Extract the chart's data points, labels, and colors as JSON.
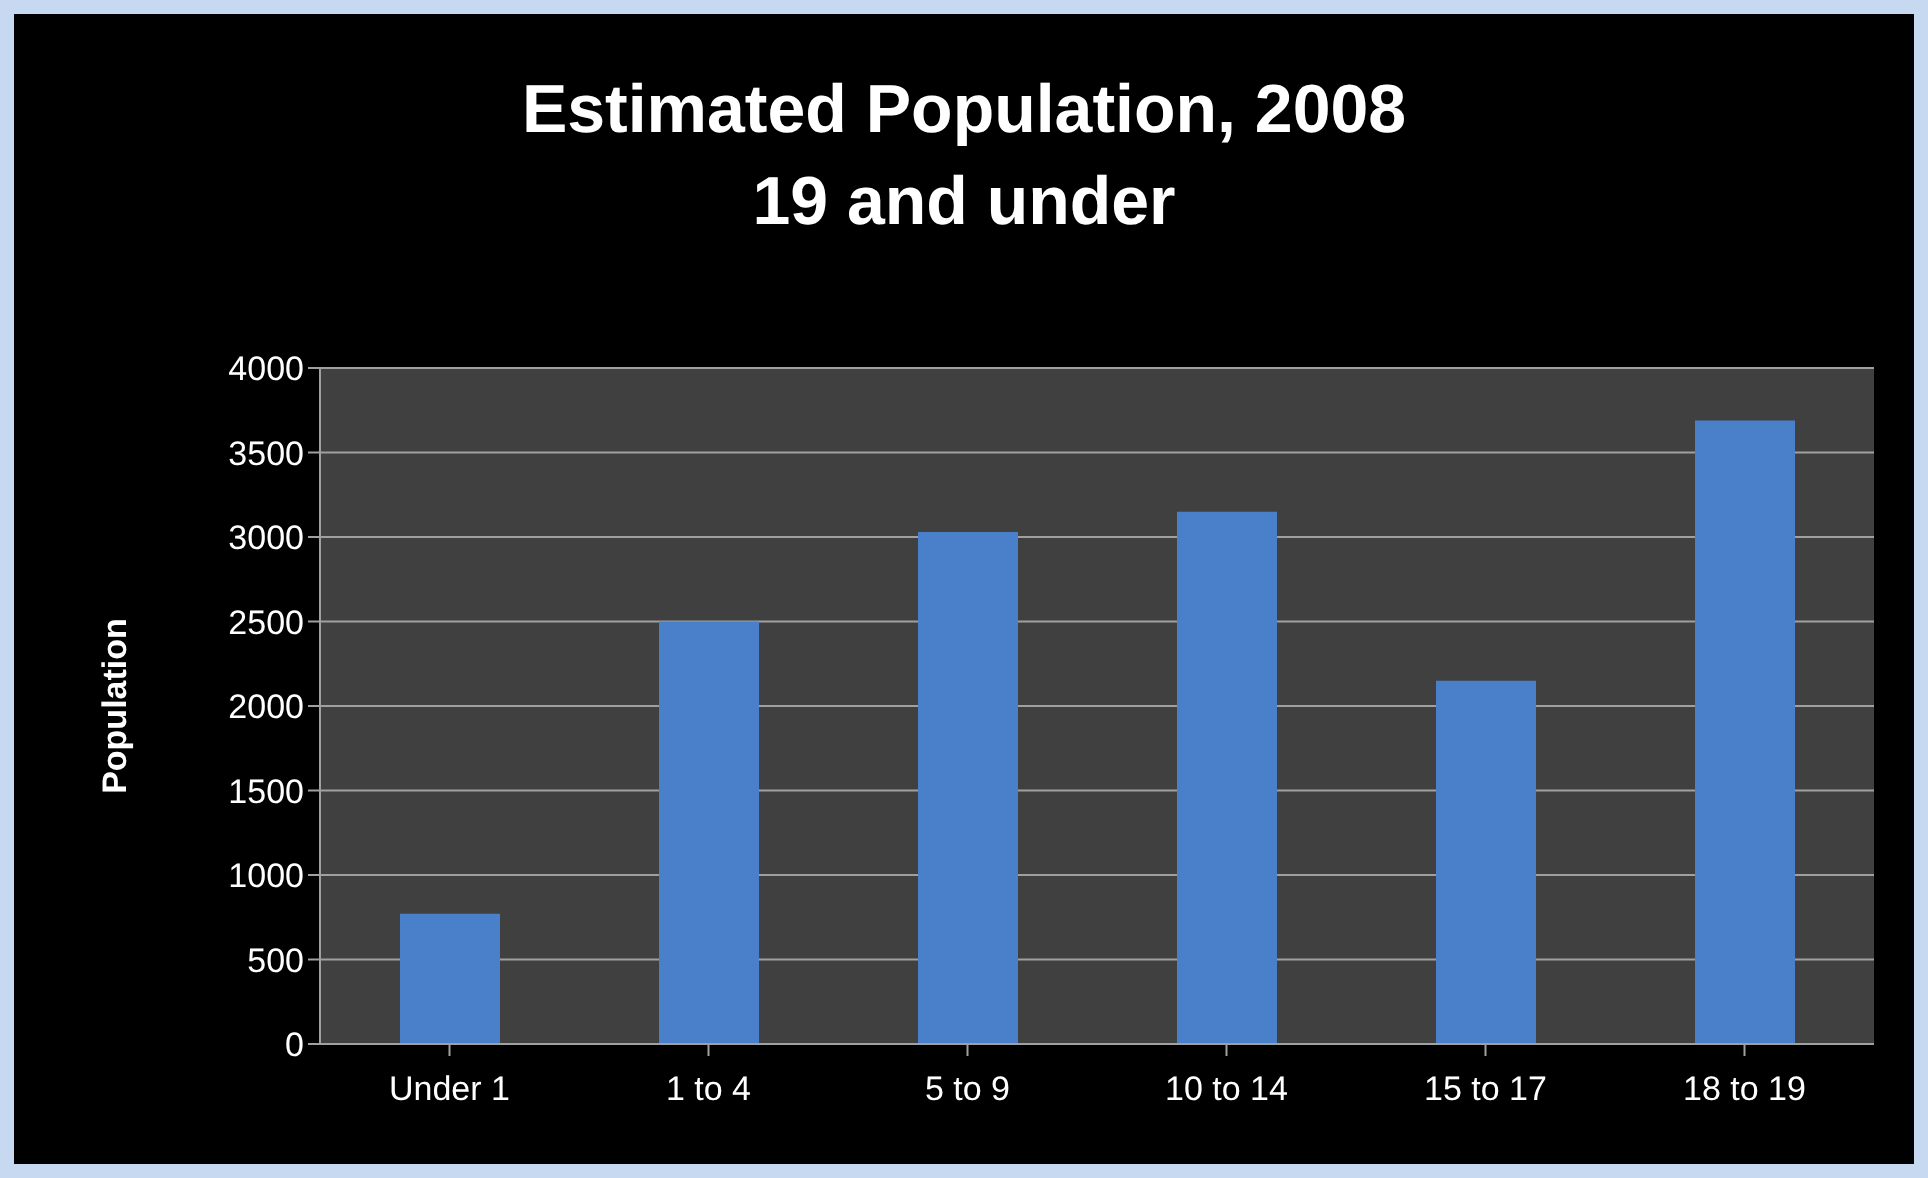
{
  "chart_data": {
    "type": "bar",
    "title": "Estimated Population, 2008\n19 and under",
    "ylabel": "Population",
    "categories": [
      "Under 1",
      "1 to 4",
      "5 to 9",
      "10 to 14",
      "15 to 17",
      "18 to 19"
    ],
    "values": [
      770,
      2500,
      3030,
      3150,
      2150,
      3690
    ],
    "color": "#4a7fc9",
    "ylim": [
      0,
      4000
    ],
    "yticks": [
      0,
      500,
      1000,
      1500,
      2000,
      2500,
      3000,
      3500,
      4000
    ],
    "grid": "y",
    "legend": false
  }
}
